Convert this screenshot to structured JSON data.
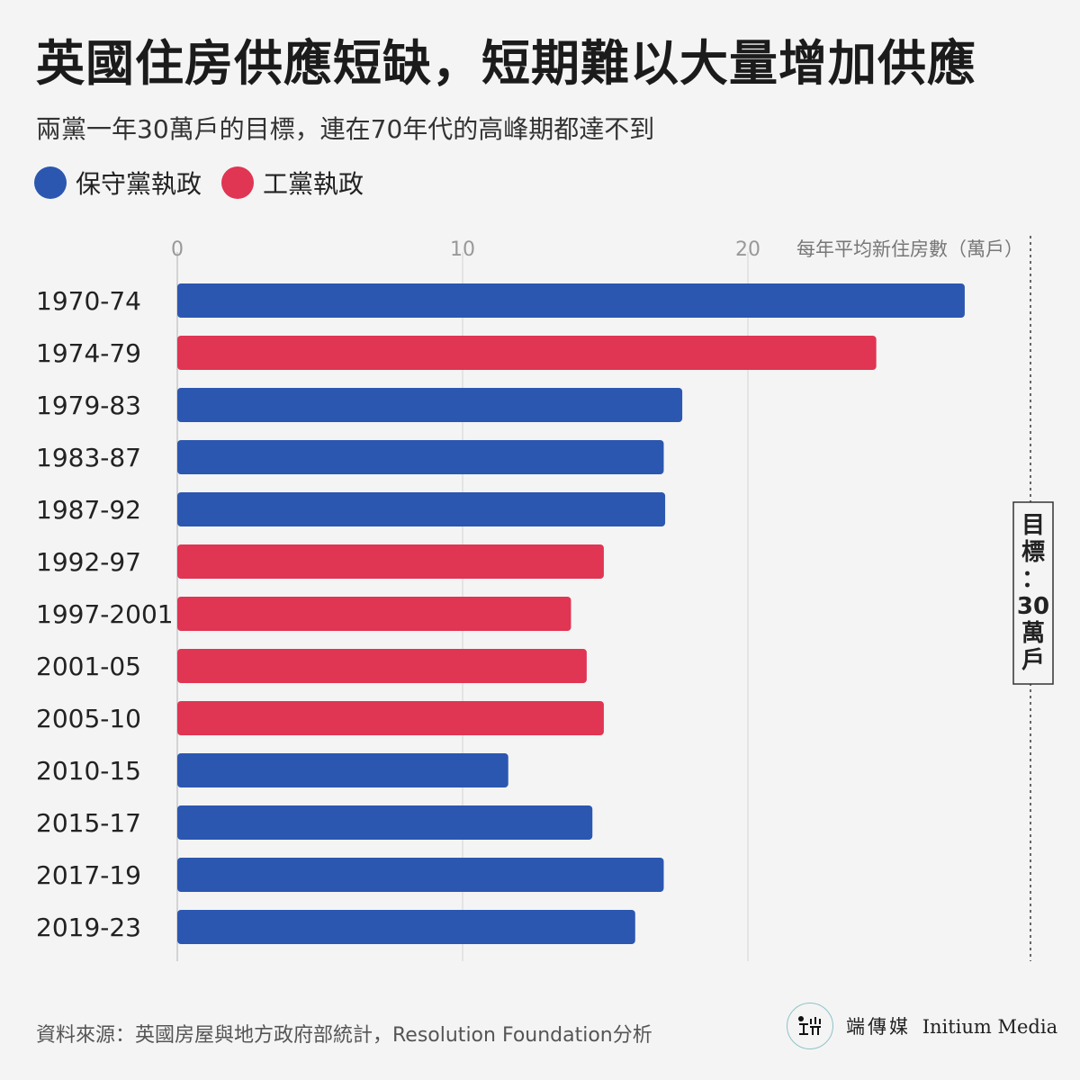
{
  "title": "英國住房供應短缺，短期難以大量增加供應",
  "subtitle": "兩黨一年30萬戶的目標，連在70年代的高峰期都達不到",
  "legend": [
    {
      "label": "保守黨執政",
      "color": "#2b57b0"
    },
    {
      "label": "工黨執政",
      "color": "#e03553"
    }
  ],
  "footer": {
    "source": "資料來源：英國房屋與地方政府部統計，Resolution Foundation分析",
    "brand_cn": "端傳媒",
    "brand_en": "Initium Media"
  },
  "chart_data": {
    "type": "bar",
    "orientation": "horizontal",
    "axis_label": "每年平均新住房數（萬戶）",
    "ticks": [
      0,
      10,
      20
    ],
    "xlim": [
      0,
      30
    ],
    "grid": true,
    "target": {
      "value": 30,
      "label": "目標：30萬戶"
    },
    "party_colors": {
      "conservative": "#2b57b0",
      "labour": "#e03553"
    },
    "categories": [
      "1970-74",
      "1974-79",
      "1979-83",
      "1983-87",
      "1987-92",
      "1992-97",
      "1997-2001",
      "2001-05",
      "2005-10",
      "2010-15",
      "2015-17",
      "2017-19",
      "2019-23"
    ],
    "values": [
      27.6,
      24.5,
      17.7,
      17.05,
      17.1,
      14.95,
      13.8,
      14.35,
      14.95,
      11.6,
      14.55,
      17.05,
      16.05
    ],
    "party": [
      "conservative",
      "labour",
      "conservative",
      "conservative",
      "conservative",
      "labour",
      "labour",
      "labour",
      "labour",
      "conservative",
      "conservative",
      "conservative",
      "conservative"
    ]
  }
}
